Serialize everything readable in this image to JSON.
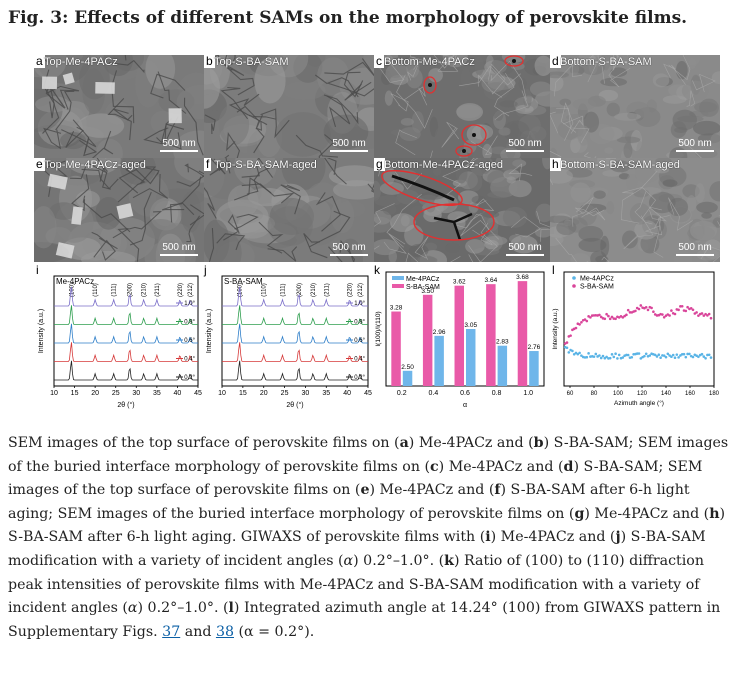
{
  "figure_title": "Fig. 3: Effects of different SAMs on the morphology of perovskite films.",
  "sem_panels": [
    {
      "letter": "a",
      "title": "Top-Me-4PACz",
      "scale": "500 nm",
      "tone": "#7a7a7a"
    },
    {
      "letter": "b",
      "title": "Top-S-BA-SAM",
      "scale": "500 nm",
      "tone": "#7c7c7c"
    },
    {
      "letter": "c",
      "title": "Bottom-Me-4PACz",
      "scale": "500 nm",
      "tone": "#6e6e6e"
    },
    {
      "letter": "d",
      "title": "Bottom-S-BA-SAM",
      "scale": "500 nm",
      "tone": "#8a8a8a"
    },
    {
      "letter": "e",
      "title": "Top-Me-4PACz-aged",
      "scale": "500 nm",
      "tone": "#757575"
    },
    {
      "letter": "f",
      "title": "Top-S-BA-SAM-aged",
      "scale": "500 nm",
      "tone": "#7b7b7b"
    },
    {
      "letter": "g",
      "title": "Bottom-Me-4PACz-aged",
      "scale": "500 nm",
      "tone": "#6a6a6a"
    },
    {
      "letter": "h",
      "title": "Bottom-S-BA-SAM-aged",
      "scale": "500 nm",
      "tone": "#8c8c8c"
    }
  ],
  "chart_data": [
    {
      "panel": "i",
      "type": "line",
      "title": "Me-4PACz",
      "xlabel": "2θ (°)",
      "ylabel": "Intensity (a.u.)",
      "xlim": [
        10,
        45
      ],
      "xticks": [
        10,
        15,
        20,
        25,
        30,
        35,
        40,
        45
      ],
      "peak_labels": [
        "(100)",
        "(110)",
        "(111)",
        "(200)",
        "(210)",
        "(211)",
        "(220)",
        "(212)"
      ],
      "peaks_2theta": [
        14.2,
        20.0,
        24.5,
        28.4,
        31.8,
        35.0,
        40.6,
        43.1
      ],
      "series": [
        {
          "name": "1.0°",
          "color": "#7b6fc9"
        },
        {
          "name": "0.8°",
          "color": "#2f9e4f"
        },
        {
          "name": "0.6°",
          "color": "#2f7fc9"
        },
        {
          "name": "0.4°",
          "color": "#d63a3a"
        },
        {
          "name": "0.2°",
          "color": "#222222"
        }
      ]
    },
    {
      "panel": "j",
      "type": "line",
      "title": "S-BA-SAM",
      "xlabel": "2θ (°)",
      "ylabel": "Intensity (a.u.)",
      "xlim": [
        10,
        45
      ],
      "xticks": [
        10,
        15,
        20,
        25,
        30,
        35,
        40,
        45
      ],
      "peak_labels": [
        "(100)",
        "(110)",
        "(111)",
        "(200)",
        "(210)",
        "(211)",
        "(220)",
        "(212)"
      ],
      "peaks_2theta": [
        14.2,
        20.0,
        24.5,
        28.4,
        31.8,
        35.0,
        40.6,
        43.1
      ],
      "series": [
        {
          "name": "1.0°",
          "color": "#7b6fc9"
        },
        {
          "name": "0.8°",
          "color": "#2f9e4f"
        },
        {
          "name": "0.6°",
          "color": "#2f7fc9"
        },
        {
          "name": "0.4°",
          "color": "#d63a3a"
        },
        {
          "name": "0.2°",
          "color": "#222222"
        }
      ]
    },
    {
      "panel": "k",
      "type": "bar",
      "xlabel": "α",
      "ylabel": "I(100)/I(110)",
      "categories": [
        "0.2",
        "0.4",
        "0.6",
        "0.8",
        "1.0"
      ],
      "ylim": [
        2.3,
        3.8
      ],
      "series": [
        {
          "name": "Me-4PACz",
          "color": "#6fb6ea",
          "values": [
            2.5,
            2.96,
            3.05,
            2.83,
            2.76
          ]
        },
        {
          "name": "S-BA-SAM",
          "color": "#e95aa8",
          "values": [
            3.28,
            3.5,
            3.62,
            3.64,
            3.68
          ]
        }
      ]
    },
    {
      "panel": "l",
      "type": "scatter",
      "xlabel": "Azimuth angle (°)",
      "ylabel": "Intensity (a.u.)",
      "xlim": [
        55,
        180
      ],
      "xticks": [
        60,
        80,
        100,
        120,
        140,
        160,
        180
      ],
      "series": [
        {
          "name": "Me-4APCz",
          "color": "#5ab4e6"
        },
        {
          "name": "S-BA-SAM",
          "color": "#d9459a"
        }
      ]
    }
  ],
  "caption": {
    "p1": "SEM images of the top surface of perovskite films on (",
    "a": "a",
    "p2": ") Me-4PACz and (",
    "b": "b",
    "p3": ") S-BA-SAM; SEM images of the buried interface morphology of perovskite films on (",
    "c": "c",
    "p4": ") Me-4PACz and (",
    "d": "d",
    "p5": ") S-BA-SAM; SEM images of the top surface of perovskite films on (",
    "e": "e",
    "p6": ") Me-4PACz and (",
    "f": "f",
    "p7": ") S-BA-SAM after 6-h light aging; SEM images of the buried interface morphology of perovskite films on (",
    "g": "g",
    "p8": ") Me-4PACz and (",
    "h": "h",
    "p9": ") S-BA-SAM after 6-h light aging. GIWAXS of perovskite films with (",
    "i": "i",
    "p10": ") Me-4PACz and (",
    "j": "j",
    "p11": ") S-BA-SAM modification with a variety of incident angles (",
    "alpha1": "α",
    "p12": ") 0.2°–1.0°. (",
    "k": "k",
    "p13": ") Ratio of (100) to (110) diffraction peak intensities of perovskite films with Me-4PACz and S-BA-SAM modification with a variety of incident angles (",
    "alpha2": "α",
    "p14": ") 0.2°–1.0°. (",
    "l": "l",
    "p15": ") Integrated azimuth angle at 14.24° (100) from GIWAXS pattern in Supplementary Figs. ",
    "link1": "37",
    "p16": " and ",
    "link2": "38",
    "p17": " (α = 0.2°)."
  }
}
